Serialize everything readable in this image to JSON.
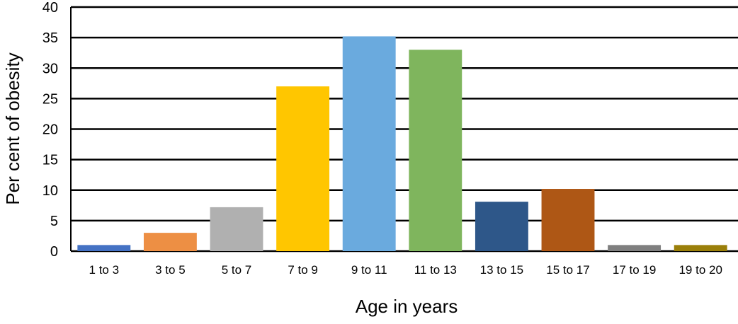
{
  "chart_data": {
    "type": "bar",
    "categories": [
      "1 to 3",
      "3 to 5",
      "5 to 7",
      "7 to 9",
      "9 to 11",
      "11 to 13",
      "13 to 15",
      "15 to 17",
      "17 to 19",
      "19 to 20"
    ],
    "values": [
      1,
      3,
      7.2,
      27,
      35.2,
      33,
      8.1,
      10.2,
      1,
      1
    ],
    "colors": [
      "#4472C4",
      "#ED8F44",
      "#B0B0B0",
      "#FFC600",
      "#6AAADE",
      "#7FB55D",
      "#2E5789",
      "#AE5715",
      "#7F7F7F",
      "#9A7F0A"
    ],
    "title": "",
    "xlabel": "Age in years",
    "ylabel": "Per cent of obesity",
    "ylim": [
      0,
      40
    ],
    "yticks": [
      0,
      5,
      10,
      15,
      20,
      25,
      30,
      35,
      40
    ],
    "grid": true,
    "legend": "none"
  }
}
